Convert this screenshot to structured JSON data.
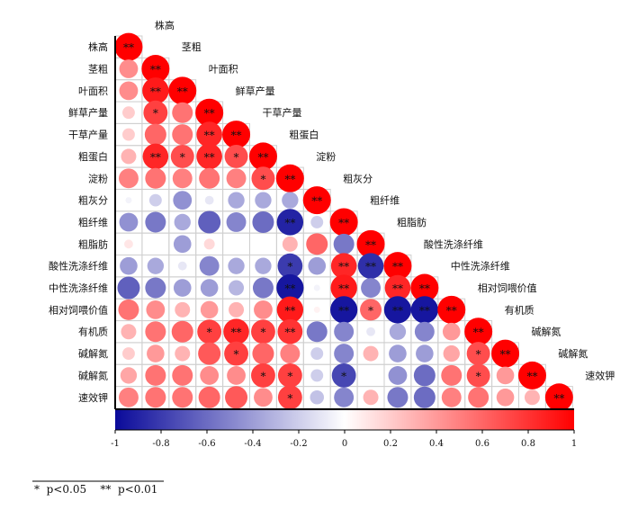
{
  "chart_data": {
    "type": "heatmap",
    "subtype": "correlation-lower-triangle-circles",
    "variables": [
      "株高",
      "茎粗",
      "叶面积",
      "鲜草产量",
      "干草产量",
      "粗蛋白",
      "淀粉",
      "粗灰分",
      "粗纤维",
      "粗脂肪",
      "酸性洗涤纤维",
      "中性洗涤纤维",
      "相对饲喂价值",
      "有机质",
      "碱解氮",
      "碱解氮",
      "速效钾"
    ],
    "matrix": [
      [
        1
      ],
      [
        0.45,
        1
      ],
      [
        0.45,
        0.9,
        1
      ],
      [
        0.2,
        0.75,
        0.55,
        1
      ],
      [
        0.2,
        0.6,
        0.55,
        0.85,
        1
      ],
      [
        0.3,
        0.85,
        0.7,
        0.85,
        0.7,
        1
      ],
      [
        0.5,
        0.55,
        0.5,
        0.55,
        0.5,
        0.7,
        1
      ],
      [
        -0.05,
        -0.2,
        -0.45,
        -0.1,
        -0.35,
        -0.35,
        -0.35,
        1
      ],
      [
        -0.45,
        -0.55,
        -0.35,
        -0.65,
        -0.5,
        -0.6,
        -0.9,
        -0.2,
        1
      ],
      [
        0.1,
        0,
        -0.4,
        0.15,
        0,
        0,
        0.3,
        0.6,
        -0.55,
        1
      ],
      [
        -0.4,
        -0.35,
        -0.1,
        -0.5,
        -0.35,
        -0.35,
        -0.8,
        -0.4,
        0.85,
        -0.85,
        1
      ],
      [
        -0.65,
        -0.55,
        -0.4,
        -0.4,
        -0.3,
        -0.55,
        -0.95,
        -0.05,
        0.9,
        -0.5,
        0.85,
        1
      ],
      [
        0.55,
        0.45,
        0.3,
        0.4,
        0.3,
        0.45,
        0.9,
        0.05,
        -0.95,
        0.6,
        -0.95,
        -0.95,
        1
      ],
      [
        0.3,
        0.55,
        0.6,
        0.75,
        0.85,
        0.75,
        0.8,
        -0.55,
        -0.5,
        -0.1,
        -0.35,
        -0.5,
        0.4,
        1
      ],
      [
        0.2,
        0.4,
        0.3,
        0.65,
        0.75,
        0.6,
        0.5,
        -0.2,
        -0.5,
        0.3,
        -0.4,
        -0.4,
        0.35,
        0.7,
        1
      ],
      [
        0.35,
        0.55,
        0.55,
        0.45,
        0.45,
        0.75,
        0.75,
        -0.2,
        -0.75,
        0,
        -0.45,
        -0.6,
        0.55,
        0.7,
        0.4,
        1
      ],
      [
        0.5,
        0.55,
        0.55,
        0.6,
        0.65,
        0.45,
        0.75,
        -0.25,
        -0.5,
        0.3,
        -0.55,
        -0.6,
        0.5,
        0.55,
        0.4,
        0.3,
        1
      ]
    ],
    "significance": [
      [
        "**"
      ],
      [
        "",
        "**"
      ],
      [
        "",
        "**",
        "**"
      ],
      [
        "",
        "*",
        "",
        "**"
      ],
      [
        "",
        "",
        "",
        "**",
        "**"
      ],
      [
        "",
        "**",
        "*",
        "**",
        "*",
        "**"
      ],
      [
        "",
        "",
        "",
        "",
        "",
        "*",
        "**"
      ],
      [
        "",
        "",
        "",
        "",
        "",
        "",
        "",
        "**"
      ],
      [
        "",
        "",
        "",
        "",
        "",
        "",
        "**",
        "",
        "**"
      ],
      [
        "",
        "",
        "",
        "",
        "",
        "",
        "",
        "",
        "",
        "**"
      ],
      [
        "",
        "",
        "",
        "",
        "",
        "",
        "*",
        "",
        "**",
        "**",
        "**"
      ],
      [
        "",
        "",
        "",
        "",
        "",
        "",
        "**",
        "",
        "**",
        "",
        "**",
        "**"
      ],
      [
        "",
        "",
        "",
        "",
        "",
        "",
        "**",
        "",
        "**",
        "*",
        "**",
        "**",
        "**"
      ],
      [
        "",
        "",
        "",
        "*",
        "**",
        "*",
        "**",
        "",
        "",
        "",
        "",
        "",
        "",
        "**"
      ],
      [
        "",
        "",
        "",
        "",
        "*",
        "",
        "",
        "",
        "",
        "",
        "",
        "",
        "",
        "*",
        "**"
      ],
      [
        "",
        "",
        "",
        "",
        "",
        "*",
        "*",
        "",
        "*",
        "",
        "",
        "",
        "",
        "*",
        "",
        "**"
      ],
      [
        "",
        "",
        "",
        "",
        "",
        "",
        "*",
        "",
        "",
        "",
        "",
        "",
        "",
        "",
        "",
        "",
        "**"
      ]
    ],
    "colorbar": {
      "min": -1,
      "max": 1,
      "ticks": [
        "-1",
        "-0.8",
        "-0.6",
        "-0.4",
        "-0.2",
        "0",
        "0.2",
        "0.4",
        "0.6",
        "0.8",
        "1"
      ],
      "low_color": "#0a0a9a",
      "mid_color": "#ffffff",
      "high_color": "#ff0000"
    },
    "legend_note": "*  p<0.05    **  p<0.01"
  }
}
